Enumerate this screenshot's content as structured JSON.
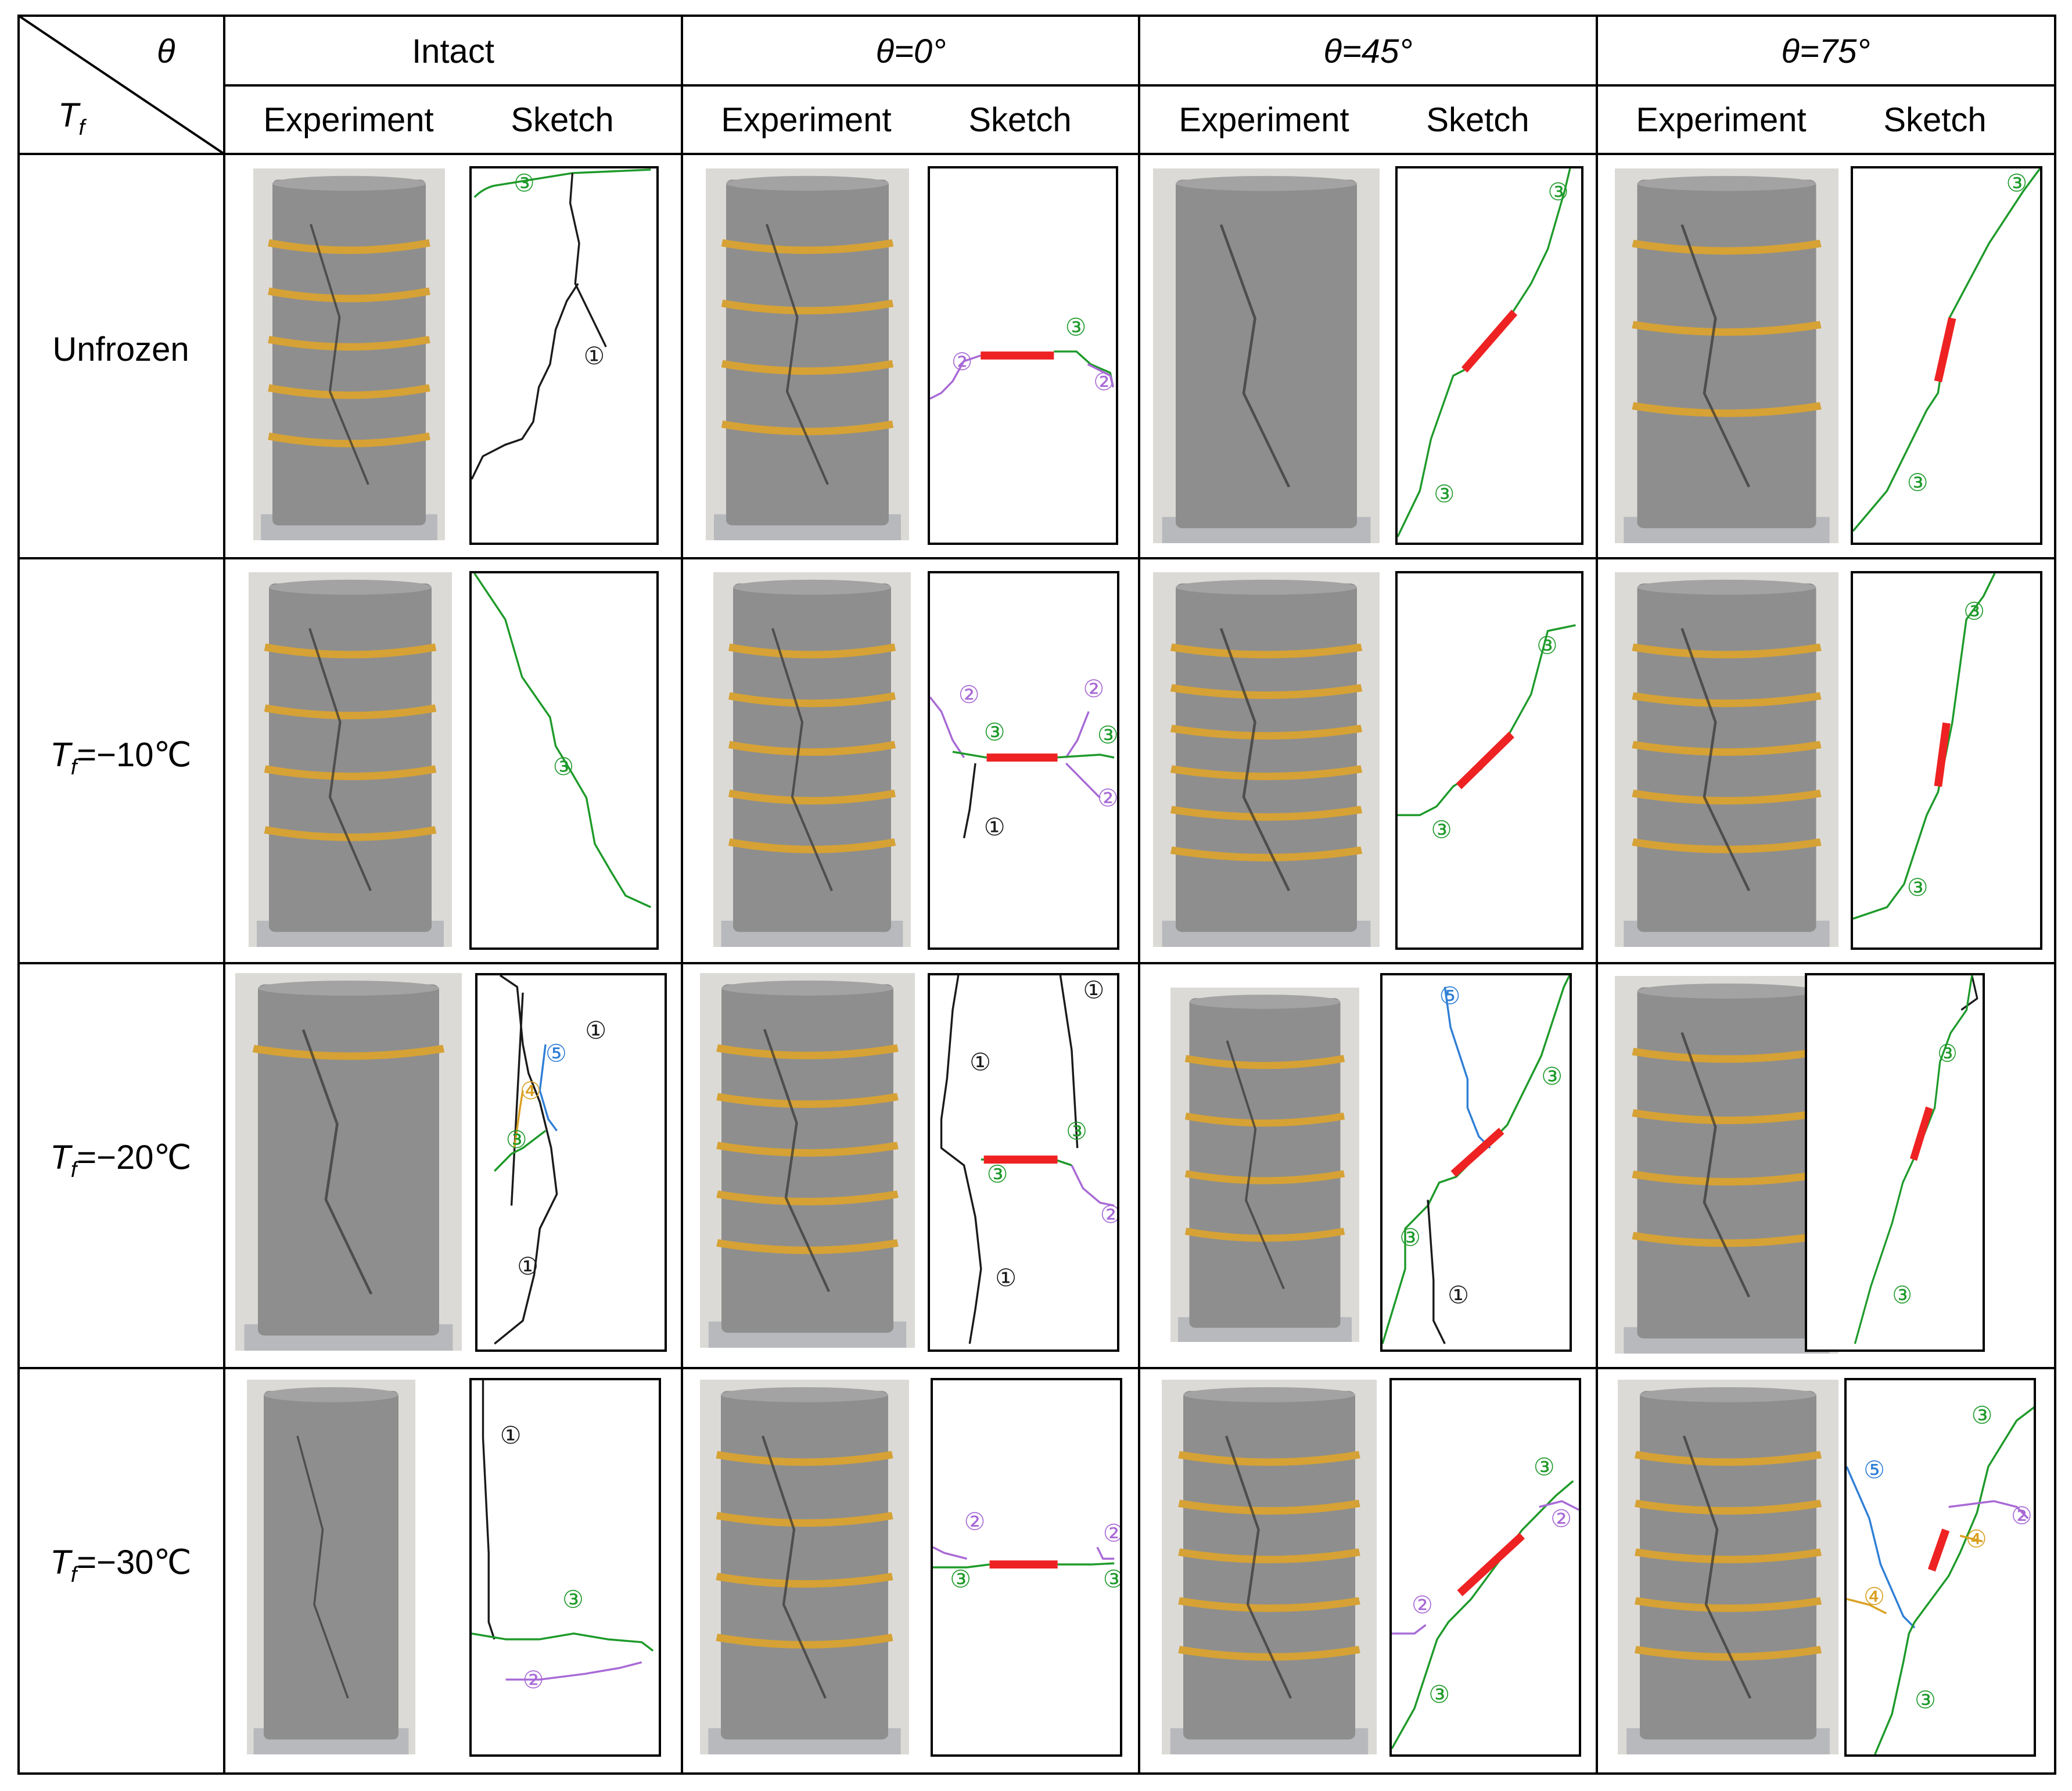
{
  "header": {
    "theta_symbol": "θ",
    "tf_symbol": "T",
    "tf_subscript": "f",
    "groups": [
      "Intact",
      "θ=0°",
      "θ=45°",
      "θ=75°"
    ],
    "sub_experiment": "Experiment",
    "sub_sketch": "Sketch"
  },
  "rows": [
    {
      "label": "Unfrozen"
    },
    {
      "label_prefix": "T",
      "label_sub": "f",
      "label_value": "=−10℃"
    },
    {
      "label_prefix": "T",
      "label_sub": "f",
      "label_value": "=−20℃"
    },
    {
      "label_prefix": "T",
      "label_sub": "f",
      "label_value": "=−30℃"
    }
  ],
  "markers": {
    "m1": "①",
    "m2": "②",
    "m3": "③",
    "m4": "④",
    "m5": "⑤"
  },
  "colors": {
    "crack_1": "#1a1a1a",
    "crack_2": "#a86ad6",
    "crack_3": "#1e9a2a",
    "crack_4": "#d9a021",
    "crack_5": "#2f7fd6",
    "flaw": "#ee2222",
    "band": "#d6a235",
    "specimen": "#8e8e8e"
  }
}
